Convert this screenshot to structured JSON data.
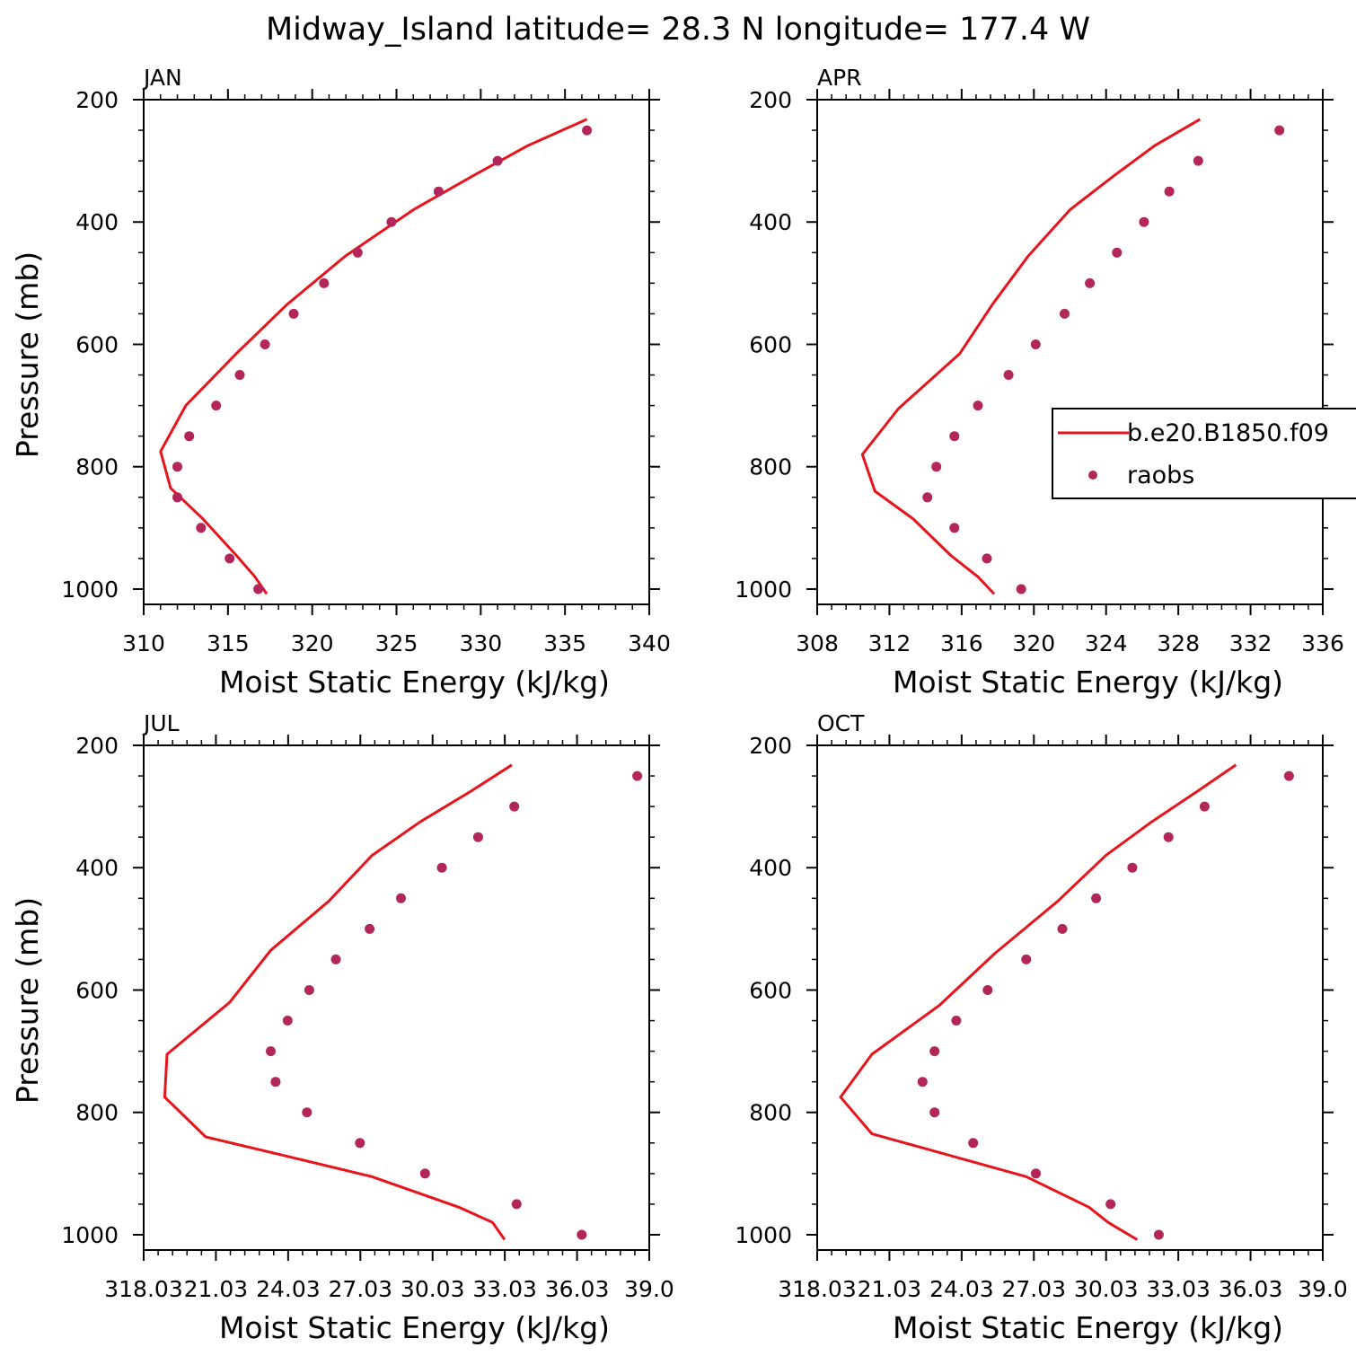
{
  "title": "Midway_Island  latitude= 28.3 N longitude= 177.4 W",
  "colors": {
    "model": "#e8141c",
    "obs": "#b22659"
  },
  "legend": {
    "model_label": "b.e20.B1850.f09",
    "obs_label": "raobs"
  },
  "chart_data": [
    {
      "type": "line",
      "panel": "JAN",
      "xlabel": "Moist Static Energy (kJ/kg)",
      "ylabel": "Pressure (mb)",
      "xlim": [
        310,
        340
      ],
      "xticks": [
        "310",
        "315",
        "320",
        "325",
        "330",
        "335",
        "340"
      ],
      "ylim": [
        200,
        1025
      ],
      "yticks": [
        "200",
        "400",
        "600",
        "800",
        "1000"
      ],
      "y_reversed": true,
      "series": [
        {
          "name": "b.e20.B1850.f09",
          "style": "line",
          "points": [
            [
              336.3,
              232
            ],
            [
              332.8,
              275
            ],
            [
              329.5,
              325
            ],
            [
              326.0,
              380
            ],
            [
              322.0,
              455
            ],
            [
              318.5,
              535
            ],
            [
              315.5,
              615
            ],
            [
              312.5,
              700
            ],
            [
              311.0,
              775
            ],
            [
              311.6,
              835
            ],
            [
              313.5,
              885
            ],
            [
              315.5,
              945
            ],
            [
              316.6,
              980
            ],
            [
              317.3,
              1008
            ]
          ]
        },
        {
          "name": "raobs",
          "style": "points",
          "points": [
            [
              336.3,
              250
            ],
            [
              331.0,
              300
            ],
            [
              327.5,
              350
            ],
            [
              324.7,
              400
            ],
            [
              322.7,
              450
            ],
            [
              320.7,
              500
            ],
            [
              318.9,
              550
            ],
            [
              317.2,
              600
            ],
            [
              315.7,
              650
            ],
            [
              314.3,
              700
            ],
            [
              312.7,
              750
            ],
            [
              312.0,
              800
            ],
            [
              312.0,
              850
            ],
            [
              313.4,
              900
            ],
            [
              315.1,
              950
            ],
            [
              316.8,
              1000
            ]
          ]
        }
      ]
    },
    {
      "type": "line",
      "panel": "APR",
      "xlabel": "Moist Static Energy (kJ/kg)",
      "ylabel": "",
      "xlim": [
        308,
        336
      ],
      "xticks": [
        "308",
        "312",
        "316",
        "320",
        "324",
        "328",
        "332",
        "336"
      ],
      "ylim": [
        200,
        1025
      ],
      "yticks": [
        "200",
        "400",
        "600",
        "800",
        "1000"
      ],
      "y_reversed": true,
      "legend_position": "right-middle",
      "series": [
        {
          "name": "b.e20.B1850.f09",
          "style": "line",
          "points": [
            [
              329.2,
              232
            ],
            [
              326.7,
              275
            ],
            [
              324.4,
              325
            ],
            [
              322.0,
              380
            ],
            [
              319.7,
              455
            ],
            [
              317.7,
              535
            ],
            [
              315.9,
              615
            ],
            [
              312.5,
              705
            ],
            [
              310.5,
              780
            ],
            [
              311.2,
              840
            ],
            [
              313.3,
              885
            ],
            [
              315.4,
              945
            ],
            [
              316.9,
              980
            ],
            [
              317.8,
              1008
            ]
          ]
        },
        {
          "name": "raobs",
          "style": "points",
          "points": [
            [
              333.6,
              250
            ],
            [
              329.1,
              300
            ],
            [
              327.5,
              350
            ],
            [
              326.1,
              400
            ],
            [
              324.6,
              450
            ],
            [
              323.1,
              500
            ],
            [
              321.7,
              550
            ],
            [
              320.1,
              600
            ],
            [
              318.6,
              650
            ],
            [
              316.9,
              700
            ],
            [
              315.6,
              750
            ],
            [
              314.6,
              800
            ],
            [
              314.1,
              850
            ],
            [
              315.6,
              900
            ],
            [
              317.4,
              950
            ],
            [
              319.3,
              1000
            ]
          ]
        }
      ]
    },
    {
      "type": "line",
      "panel": "JUL",
      "xlabel": "Moist Static Energy (kJ/kg)",
      "ylabel": "Pressure (mb)",
      "xlim": [
        318.03,
        339.0
      ],
      "xticks": [
        "318.03",
        "21.03",
        "24.03",
        "27.03",
        "30.03",
        "33.03",
        "36.03",
        "39.0"
      ],
      "ylim": [
        200,
        1025
      ],
      "yticks": [
        "200",
        "400",
        "600",
        "800",
        "1000"
      ],
      "y_reversed": true,
      "series": [
        {
          "name": "b.e20.B1850.f09",
          "style": "line",
          "points": [
            [
              333.3,
              232
            ],
            [
              331.6,
              275
            ],
            [
              329.5,
              325
            ],
            [
              327.5,
              380
            ],
            [
              325.7,
              455
            ],
            [
              323.3,
              535
            ],
            [
              321.6,
              620
            ],
            [
              319.0,
              705
            ],
            [
              318.9,
              775
            ],
            [
              320.6,
              840
            ],
            [
              323.8,
              870
            ],
            [
              327.5,
              905
            ],
            [
              331.1,
              955
            ],
            [
              332.5,
              980
            ],
            [
              333.0,
              1008
            ]
          ]
        },
        {
          "name": "raobs",
          "style": "points",
          "points": [
            [
              338.5,
              250
            ],
            [
              333.4,
              300
            ],
            [
              331.9,
              350
            ],
            [
              330.4,
              400
            ],
            [
              328.7,
              450
            ],
            [
              327.4,
              500
            ],
            [
              326.0,
              550
            ],
            [
              324.9,
              600
            ],
            [
              324.0,
              650
            ],
            [
              323.3,
              700
            ],
            [
              323.5,
              750
            ],
            [
              324.8,
              800
            ],
            [
              327.0,
              850
            ],
            [
              329.7,
              900
            ],
            [
              333.5,
              950
            ],
            [
              336.2,
              1000
            ]
          ]
        }
      ]
    },
    {
      "type": "line",
      "panel": "OCT",
      "xlabel": "Moist Static Energy (kJ/kg)",
      "ylabel": "",
      "xlim": [
        318.03,
        339.0
      ],
      "xticks": [
        "318.03",
        "21.03",
        "24.03",
        "27.03",
        "30.03",
        "33.03",
        "36.03",
        "39.0"
      ],
      "ylim": [
        200,
        1025
      ],
      "yticks": [
        "200",
        "400",
        "600",
        "800",
        "1000"
      ],
      "y_reversed": true,
      "series": [
        {
          "name": "b.e20.B1850.f09",
          "style": "line",
          "points": [
            [
              335.4,
              232
            ],
            [
              333.8,
              275
            ],
            [
              331.9,
              325
            ],
            [
              330.0,
              380
            ],
            [
              328.0,
              455
            ],
            [
              325.4,
              540
            ],
            [
              323.1,
              625
            ],
            [
              320.3,
              705
            ],
            [
              319.0,
              775
            ],
            [
              320.3,
              835
            ],
            [
              323.5,
              870
            ],
            [
              326.7,
              905
            ],
            [
              329.3,
              955
            ],
            [
              330.1,
              980
            ],
            [
              331.3,
              1008
            ]
          ]
        },
        {
          "name": "raobs",
          "style": "points",
          "points": [
            [
              337.6,
              250
            ],
            [
              334.1,
              300
            ],
            [
              332.6,
              350
            ],
            [
              331.1,
              400
            ],
            [
              329.6,
              450
            ],
            [
              328.2,
              500
            ],
            [
              326.7,
              550
            ],
            [
              325.1,
              600
            ],
            [
              323.8,
              650
            ],
            [
              322.9,
              700
            ],
            [
              322.4,
              750
            ],
            [
              322.9,
              800
            ],
            [
              324.5,
              850
            ],
            [
              327.1,
              900
            ],
            [
              330.2,
              950
            ],
            [
              332.2,
              1000
            ]
          ]
        }
      ]
    }
  ]
}
